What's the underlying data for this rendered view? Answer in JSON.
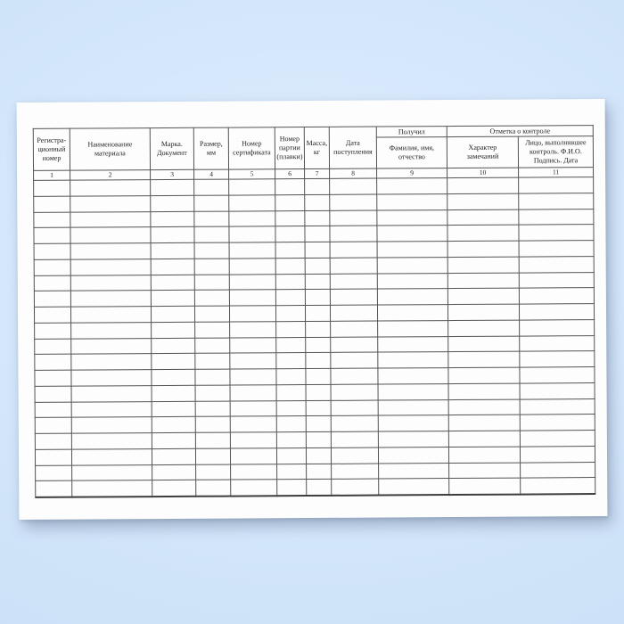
{
  "scene": {
    "background_center": "#e1eefd",
    "background_edge": "#c6dcf4",
    "paper_color": "#fdfdfe",
    "line_color": "#555252",
    "text_color": "#1e1e1e"
  },
  "journal_table": {
    "group_headers": {
      "received": "Получил",
      "control_mark": "Отметка о контроле"
    },
    "columns": [
      {
        "num": "1",
        "label": "Регистра-\nционный\nномер"
      },
      {
        "num": "2",
        "label": "Наименование\nматериала"
      },
      {
        "num": "3",
        "label": "Марка.\nДокумент"
      },
      {
        "num": "4",
        "label": "Размер,\nмм"
      },
      {
        "num": "5",
        "label": "Номер\nсертификата"
      },
      {
        "num": "6",
        "label": "Номер\nпартии\n(плавки)"
      },
      {
        "num": "7",
        "label": "Масса,\nкг"
      },
      {
        "num": "8",
        "label": "Дата\nпоступления"
      },
      {
        "num": "9",
        "label": "Фамилия, имя,\nотчество"
      },
      {
        "num": "10",
        "label": "Характер\nзамечаний"
      },
      {
        "num": "11",
        "label": "Лицо, выполнявшее\nконтроль. Ф.И.О.\nПодпись. Дата"
      }
    ],
    "empty_row_count": 20,
    "column_count": 11
  }
}
